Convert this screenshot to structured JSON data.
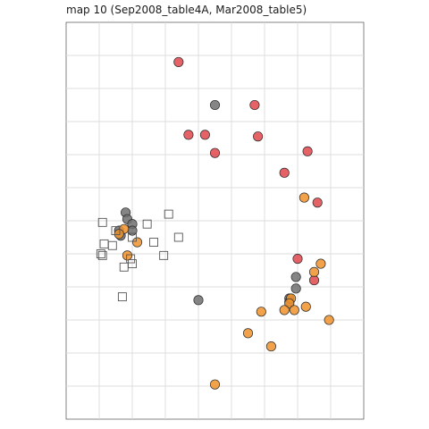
{
  "chart_data": {
    "type": "scatter",
    "title": "map 10 (Sep2008_table4A, Mar2008_table5)",
    "xlabel": "",
    "ylabel": "",
    "xlim": [
      0,
      9
    ],
    "ylim": [
      0,
      12
    ],
    "grid": true,
    "axis_ticks_labels": false,
    "series": [
      {
        "name": "red",
        "marker": "circle",
        "color": "#e0474c",
        "points": [
          [
            3.4,
            10.8
          ],
          [
            5.7,
            9.5
          ],
          [
            3.7,
            8.6
          ],
          [
            4.2,
            8.6
          ],
          [
            5.8,
            8.55
          ],
          [
            4.5,
            8.05
          ],
          [
            7.3,
            8.1
          ],
          [
            6.6,
            7.45
          ],
          [
            7.6,
            6.55
          ],
          [
            7.0,
            4.85
          ],
          [
            7.5,
            4.2
          ]
        ]
      },
      {
        "name": "gray",
        "marker": "circle",
        "color": "#707070",
        "points": [
          [
            4.5,
            9.5
          ],
          [
            1.8,
            6.25
          ],
          [
            1.85,
            6.05
          ],
          [
            2.0,
            5.9
          ],
          [
            1.6,
            5.7
          ],
          [
            2.0,
            5.7
          ],
          [
            1.65,
            5.55
          ],
          [
            6.95,
            4.3
          ],
          [
            6.95,
            3.95
          ],
          [
            4.0,
            3.6
          ],
          [
            6.75,
            3.65
          ],
          [
            6.75,
            3.55
          ]
        ]
      },
      {
        "name": "orange",
        "marker": "circle",
        "color": "#f0922b",
        "points": [
          [
            7.2,
            6.7
          ],
          [
            1.75,
            5.75
          ],
          [
            1.6,
            5.6
          ],
          [
            2.15,
            5.35
          ],
          [
            1.85,
            4.95
          ],
          [
            7.7,
            4.7
          ],
          [
            7.5,
            4.45
          ],
          [
            6.8,
            3.65
          ],
          [
            6.75,
            3.5
          ],
          [
            6.6,
            3.3
          ],
          [
            6.9,
            3.3
          ],
          [
            7.25,
            3.4
          ],
          [
            5.9,
            3.25
          ],
          [
            7.95,
            3.0
          ],
          [
            5.5,
            2.6
          ],
          [
            6.2,
            2.2
          ],
          [
            4.5,
            1.05
          ]
        ]
      },
      {
        "name": "open-square",
        "marker": "square",
        "color": "#ffffff",
        "points": [
          [
            3.1,
            6.2
          ],
          [
            1.1,
            5.95
          ],
          [
            1.5,
            5.7
          ],
          [
            2.45,
            5.9
          ],
          [
            3.4,
            5.5
          ],
          [
            2.0,
            5.5
          ],
          [
            2.65,
            5.35
          ],
          [
            1.15,
            5.3
          ],
          [
            1.4,
            5.25
          ],
          [
            1.05,
            5.0
          ],
          [
            1.1,
            4.95
          ],
          [
            2.95,
            4.95
          ],
          [
            1.95,
            4.85
          ],
          [
            2.0,
            4.7
          ],
          [
            1.75,
            4.6
          ],
          [
            1.7,
            3.7
          ]
        ]
      }
    ]
  }
}
